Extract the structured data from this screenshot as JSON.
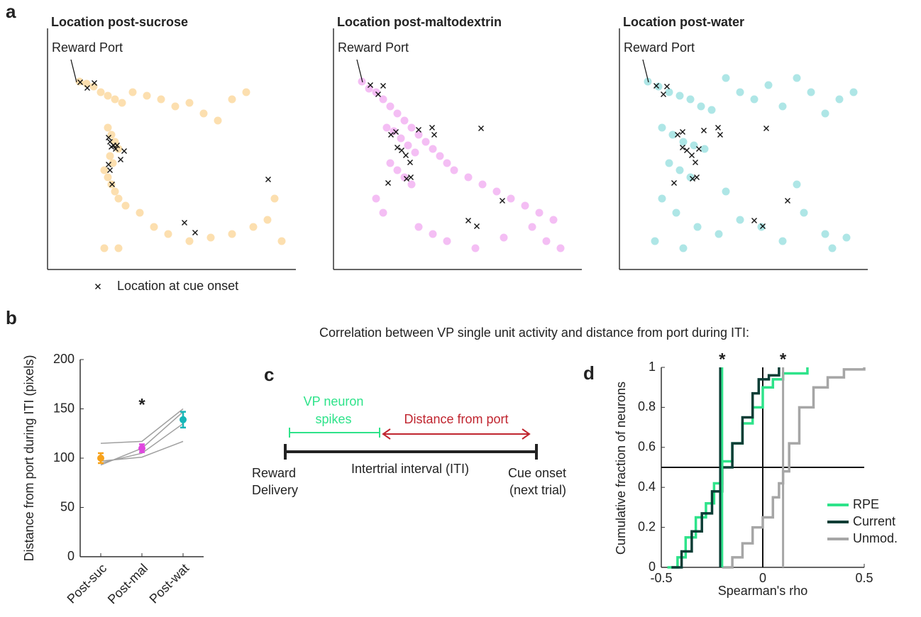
{
  "caption": "Correlation between VP single unit activity and distance from port during ITI:",
  "chart_data": [
    {
      "type": "scatter",
      "panel_label": "a",
      "title": "Location post-sucrose",
      "annotation": "Reward Port",
      "color": "#f7a21b",
      "xlim": [
        0,
        350
      ],
      "ylim": [
        0,
        340
      ],
      "dots": {
        "x": [
          45,
          55,
          65,
          75,
          85,
          95,
          105,
          120,
          140,
          160,
          180,
          200,
          220,
          240,
          260,
          280,
          85,
          90,
          95,
          100,
          88,
          92,
          80,
          85,
          90,
          95,
          100,
          110,
          130,
          150,
          170,
          200,
          230,
          260,
          290,
          310,
          320,
          330,
          80,
          100
        ],
        "values": [
          265,
          262,
          258,
          250,
          245,
          240,
          235,
          250,
          245,
          240,
          230,
          235,
          220,
          210,
          240,
          250,
          200,
          190,
          180,
          170,
          160,
          150,
          140,
          130,
          120,
          110,
          100,
          90,
          80,
          60,
          50,
          40,
          45,
          50,
          60,
          70,
          100,
          40,
          30,
          30
        ]
      },
      "crosses": {
        "name": "Location at cue onset",
        "x": [
          46,
          56,
          66,
          86,
          88,
          90,
          93,
          96,
          98,
          103,
          108,
          86,
          88,
          91,
          193,
          208,
          311
        ],
        "values": [
          264,
          256,
          263,
          186,
          180,
          173,
          175,
          170,
          175,
          155,
          167,
          148,
          140,
          120,
          66,
          52,
          127
        ]
      }
    },
    {
      "type": "scatter",
      "title": "Location post-maltodextrin",
      "annotation": "Reward Port",
      "color": "#df45df",
      "xlim": [
        0,
        350
      ],
      "ylim": [
        0,
        340
      ],
      "dots": {
        "x": [
          40,
          50,
          60,
          70,
          80,
          90,
          100,
          110,
          120,
          130,
          140,
          150,
          160,
          170,
          190,
          210,
          230,
          250,
          270,
          290,
          310,
          75,
          85,
          95,
          105,
          115,
          80,
          90,
          100,
          110,
          60,
          70,
          120,
          140,
          160,
          200,
          240,
          280,
          300,
          320
        ],
        "values": [
          265,
          255,
          250,
          240,
          230,
          220,
          210,
          200,
          190,
          180,
          170,
          160,
          150,
          140,
          130,
          120,
          110,
          100,
          90,
          80,
          70,
          200,
          195,
          185,
          175,
          165,
          150,
          140,
          130,
          120,
          100,
          80,
          60,
          50,
          40,
          30,
          45,
          60,
          40,
          30
        ]
      },
      "crosses": {
        "x": [
          52,
          70,
          63,
          81,
          88,
          120,
          139,
          142,
          90,
          96,
          102,
          108,
          77,
          103,
          109,
          208,
          190,
          202,
          238
        ],
        "values": [
          260,
          259,
          247,
          190,
          194,
          197,
          200,
          190,
          172,
          168,
          161,
          151,
          122,
          128,
          130,
          199,
          69,
          61,
          97
        ]
      }
    },
    {
      "type": "scatter",
      "title": "Location post-water",
      "annotation": "Reward Port",
      "color": "#17b6b8",
      "xlim": [
        0,
        350
      ],
      "ylim": [
        0,
        340
      ],
      "dots": {
        "x": [
          40,
          55,
          70,
          85,
          100,
          115,
          130,
          150,
          170,
          190,
          210,
          230,
          250,
          270,
          290,
          310,
          330,
          60,
          75,
          90,
          105,
          120,
          70,
          85,
          100,
          60,
          80,
          110,
          140,
          170,
          200,
          230,
          260,
          290,
          320,
          50,
          90,
          150,
          250,
          300
        ],
        "values": [
          265,
          258,
          250,
          245,
          240,
          230,
          225,
          270,
          250,
          240,
          260,
          230,
          270,
          250,
          220,
          240,
          250,
          200,
          190,
          180,
          175,
          170,
          150,
          140,
          130,
          100,
          80,
          60,
          50,
          70,
          60,
          40,
          80,
          50,
          45,
          40,
          30,
          110,
          120,
          30
        ]
      },
      "crosses": {
        "x": [
          52,
          67,
          62,
          82,
          89,
          119,
          139,
          142,
          89,
          95,
          102,
          107,
          77,
          103,
          109,
          207,
          190,
          202,
          237,
          112
        ],
        "values": [
          259,
          258,
          247,
          190,
          194,
          196,
          200,
          190,
          172,
          168,
          161,
          151,
          122,
          128,
          130,
          199,
          69,
          61,
          97,
          170
        ]
      }
    },
    {
      "type": "line",
      "panel_label": "b",
      "ylabel": "Distance from port during ITI (pixels)",
      "categories": [
        "Post-suc",
        "Post-mal",
        "Post-wat"
      ],
      "ylim": [
        0,
        200
      ],
      "yticks": [
        0,
        50,
        100,
        150,
        200
      ],
      "series": [
        {
          "color": "#a0a0a0",
          "values": [
            115,
            117,
            150
          ]
        },
        {
          "color": "#a0a0a0",
          "values": [
            93,
            110,
            147
          ]
        },
        {
          "color": "#a0a0a0",
          "values": [
            95,
            105,
            135
          ]
        },
        {
          "color": "#a0a0a0",
          "values": [
            97,
            101,
            117
          ]
        }
      ],
      "means": {
        "values": [
          100,
          110,
          139
        ],
        "errors": [
          5,
          4,
          8
        ],
        "colors": [
          "#f7a21b",
          "#df45df",
          "#17b6b8"
        ]
      },
      "significance": [
        null,
        "*",
        null
      ]
    },
    {
      "type": "step",
      "panel_label": "d",
      "xlabel": "Spearman's rho",
      "ylabel": "Cumulative fraction of neurons",
      "xlim": [
        -0.5,
        0.5
      ],
      "xticks": [
        -0.5,
        0,
        0.5
      ],
      "ylim": [
        0,
        1
      ],
      "yticks": [
        0,
        0.2,
        0.4,
        0.6,
        0.8,
        1
      ],
      "reference_lines": {
        "x": 0,
        "y": 0.5
      },
      "annotations": [
        {
          "text": "*",
          "x": -0.2
        },
        {
          "text": "*",
          "x": 0.1
        }
      ],
      "legend": "lower right",
      "series": [
        {
          "name": "RPE",
          "color": "#2ee38a",
          "median": -0.2,
          "x": [
            -0.47,
            -0.42,
            -0.38,
            -0.33,
            -0.28,
            -0.24,
            -0.2,
            -0.15,
            -0.1,
            -0.05,
            0,
            0.05,
            0.1,
            0.22
          ],
          "values": [
            0,
            0.05,
            0.15,
            0.25,
            0.32,
            0.42,
            0.53,
            0.62,
            0.72,
            0.8,
            0.9,
            0.94,
            0.97,
            1
          ]
        },
        {
          "name": "Current",
          "color": "#0b3d35",
          "median": -0.21,
          "x": [
            -0.45,
            -0.4,
            -0.35,
            -0.3,
            -0.25,
            -0.2,
            -0.15,
            -0.1,
            -0.05,
            -0.02,
            0.03,
            0.08
          ],
          "values": [
            0,
            0.08,
            0.18,
            0.27,
            0.38,
            0.5,
            0.62,
            0.75,
            0.87,
            0.94,
            0.96,
            1
          ]
        },
        {
          "name": "Unmod.",
          "color": "#a6a6a6",
          "median": 0.1,
          "x": [
            -0.2,
            -0.15,
            -0.1,
            -0.05,
            0,
            0.05,
            0.08,
            0.1,
            0.13,
            0.18,
            0.25,
            0.32,
            0.4,
            0.5
          ],
          "values": [
            0,
            0.05,
            0.12,
            0.2,
            0.25,
            0.35,
            0.42,
            0.48,
            0.62,
            0.8,
            0.9,
            0.95,
            0.99,
            1
          ]
        }
      ]
    }
  ],
  "diagram": {
    "panel_label": "c",
    "spikes_label": [
      "VP neuron",
      "spikes"
    ],
    "distance_label": "Distance from port",
    "start_label": [
      "Reward",
      "Delivery"
    ],
    "interval_label": "Intertrial interval (ITI)",
    "end_label": [
      "Cue onset",
      "(next trial)"
    ]
  }
}
